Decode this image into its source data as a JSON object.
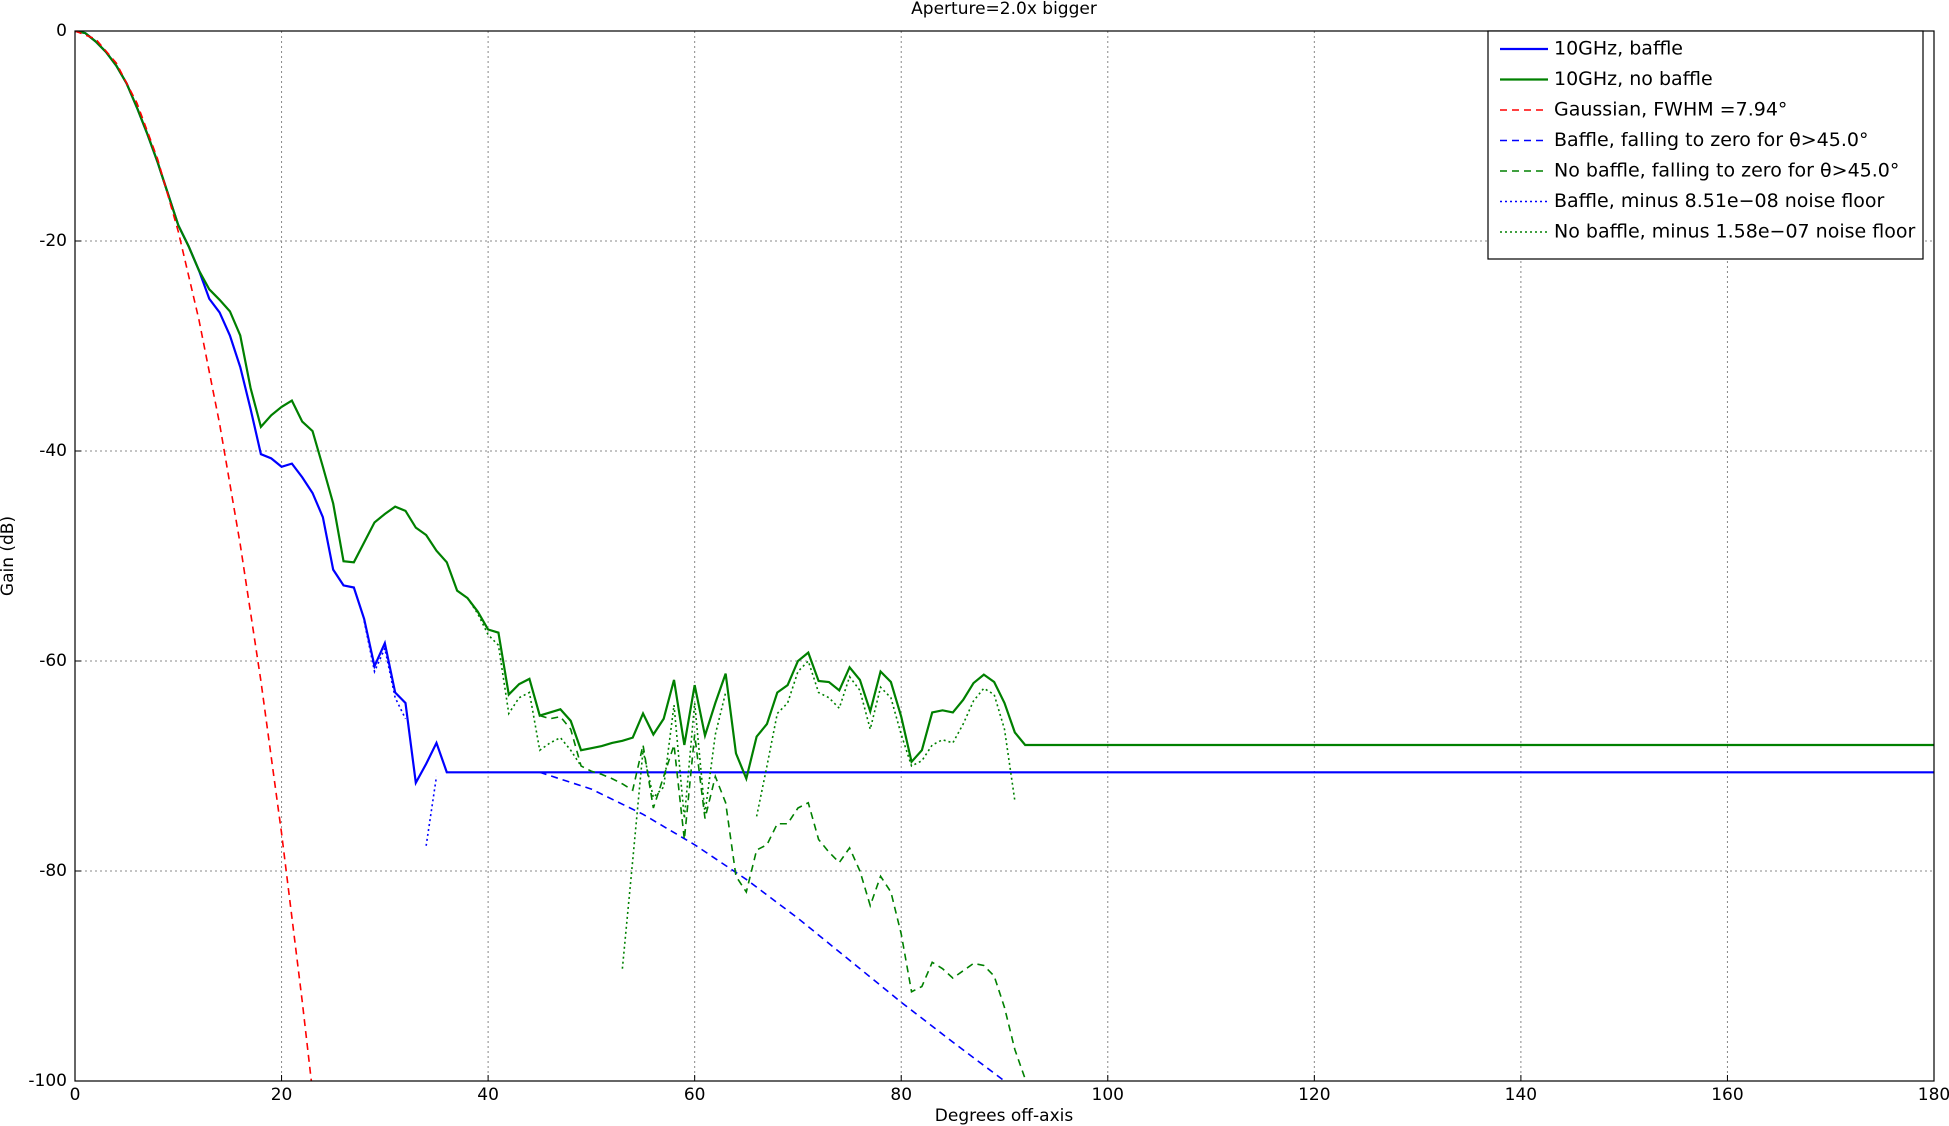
{
  "chart_data": {
    "type": "line",
    "title": "Aperture=2.0x bigger",
    "x_label": "Degrees off-axis",
    "y_label": "Gain (dB)",
    "xlim": [
      0,
      180
    ],
    "ylim": [
      -100,
      0
    ],
    "xticks": [
      0,
      20,
      40,
      60,
      80,
      100,
      120,
      140,
      160,
      180
    ],
    "yticks": [
      -100,
      -80,
      -60,
      -40,
      -20,
      0
    ],
    "grid": true,
    "legend": "upper right",
    "series": [
      {
        "name": "10GHz, baffle",
        "color": "#0000ff",
        "style": "solid",
        "x": [
          0,
          1,
          2,
          3,
          4,
          5,
          6,
          7,
          8,
          9,
          10,
          11,
          12,
          13,
          14,
          15,
          16,
          17,
          18,
          19,
          20,
          21,
          22,
          23,
          24,
          25,
          26,
          27,
          28,
          29,
          30,
          31,
          32,
          33,
          34,
          35,
          36,
          180
        ],
        "values": [
          0,
          -0.2,
          -1,
          -2,
          -3.3,
          -5,
          -7.3,
          -9.8,
          -12.5,
          -15.5,
          -18.5,
          -20.5,
          -22.8,
          -25.5,
          -26.8,
          -29,
          -32,
          -36,
          -40.3,
          -40.7,
          -41.5,
          -41.2,
          -42.5,
          -44,
          -46.3,
          -51.3,
          -52.8,
          -53,
          -56,
          -60.5,
          -58.3,
          -63,
          -64,
          -71.6,
          -69.8,
          -67.8,
          -70.6,
          -70.6
        ]
      },
      {
        "name": "10GHz, no baffle",
        "color": "#008000",
        "style": "solid",
        "x": [
          0,
          1,
          2,
          3,
          4,
          5,
          6,
          7,
          8,
          9,
          10,
          11,
          12,
          13,
          14,
          15,
          16,
          17,
          18,
          19,
          20,
          21,
          22,
          23,
          24,
          25,
          26,
          27,
          28,
          29,
          30,
          31,
          32,
          33,
          34,
          35,
          36,
          37,
          38,
          39,
          40,
          41,
          42,
          43,
          44,
          45,
          46,
          47,
          48,
          49,
          50,
          51,
          52,
          53,
          54,
          55,
          56,
          57,
          58,
          59,
          60,
          61,
          62,
          63,
          64,
          65,
          66,
          67,
          68,
          69,
          70,
          71,
          72,
          73,
          74,
          75,
          76,
          77,
          78,
          79,
          80,
          81,
          82,
          83,
          84,
          85,
          86,
          87,
          88,
          89,
          90,
          91,
          92,
          180
        ],
        "values": [
          0,
          -0.2,
          -1,
          -2,
          -3.3,
          -5,
          -7.3,
          -9.8,
          -12.5,
          -15.5,
          -18.5,
          -20.5,
          -22.8,
          -24.6,
          -25.6,
          -26.7,
          -29,
          -34,
          -37.7,
          -36.6,
          -35.8,
          -35.2,
          -37.2,
          -38.1,
          -41.5,
          -45,
          -50.5,
          -50.6,
          -48.7,
          -46.8,
          -46,
          -45.3,
          -45.7,
          -47.3,
          -48,
          -49.5,
          -50.6,
          -53.3,
          -54,
          -55.3,
          -57,
          -57.3,
          -63.2,
          -62.2,
          -61.7,
          -65.2,
          -64.9,
          -64.6,
          -65.7,
          -68.5,
          -68.3,
          -68.1,
          -67.8,
          -67.6,
          -67.3,
          -65,
          -67,
          -65.5,
          -61.8,
          -68,
          -62.3,
          -67.1,
          -64,
          -61.2,
          -68.8,
          -71.2,
          -67.2,
          -66,
          -63,
          -62.3,
          -60,
          -59.2,
          -61.9,
          -62,
          -62.8,
          -60.6,
          -61.8,
          -64.8,
          -61,
          -62,
          -65.3,
          -69.6,
          -68.5,
          -64.9,
          -64.7,
          -64.9,
          -63.7,
          -62.1,
          -61.3,
          -62,
          -64,
          -66.8,
          -68,
          -68
        ]
      },
      {
        "name": "Gaussian, FWHM =7.94°",
        "color": "#ff0000",
        "style": "dashed",
        "x": [
          0,
          2,
          4,
          6,
          8,
          10,
          12,
          14,
          16,
          18,
          20,
          22,
          23
        ],
        "values": [
          0,
          -0.76,
          -3.06,
          -6.87,
          -12.2,
          -19.1,
          -27.5,
          -37.4,
          -48.9,
          -61.9,
          -76.4,
          -92.4,
          -101
        ]
      },
      {
        "name": "Baffle, falling to zero for θ>45.0°",
        "color": "#0000ff",
        "style": "dashed",
        "x": [
          45,
          50,
          55,
          60,
          65,
          70,
          75,
          80,
          85,
          90
        ],
        "values": [
          -70.6,
          -72.2,
          -74.6,
          -77.5,
          -80.8,
          -84.5,
          -88.5,
          -92.5,
          -96.3,
          -100
        ]
      },
      {
        "name": "No baffle, falling to zero for θ>45.0°",
        "color": "#008000",
        "style": "dashed",
        "x": [
          45,
          46,
          47,
          48,
          49,
          50,
          51,
          52,
          53,
          54,
          55,
          56,
          57,
          58,
          59,
          60,
          61,
          62,
          63,
          64,
          65,
          66,
          67,
          68,
          69,
          70,
          71,
          72,
          73,
          74,
          75,
          76,
          77,
          78,
          79,
          80,
          81,
          82,
          83,
          84,
          85,
          86,
          87,
          88,
          89,
          90,
          91,
          92
        ],
        "values": [
          -65.2,
          -65.5,
          -65.3,
          -66.5,
          -70,
          -70.5,
          -70.8,
          -71.2,
          -71.7,
          -72.3,
          -68,
          -74,
          -71,
          -68,
          -77,
          -67,
          -75,
          -71,
          -73.5,
          -80.5,
          -82,
          -78,
          -77.5,
          -75.5,
          -75.5,
          -74,
          -73.5,
          -77,
          -78.2,
          -79.2,
          -77.8,
          -80,
          -83.3,
          -80.5,
          -82,
          -86,
          -91.5,
          -91,
          -88.7,
          -89.3,
          -90.2,
          -89.5,
          -88.8,
          -89,
          -90,
          -93,
          -97,
          -99.8
        ]
      },
      {
        "name": "Baffle, minus 8.51e−08 noise floor",
        "color": "#0000ff",
        "style": "dotted",
        "x": [
          28,
          29,
          30,
          31,
          32,
          33,
          34,
          35
        ],
        "values": [
          -56.2,
          -61,
          -58.8,
          -63.5,
          -65.5,
          null,
          -77.6,
          -71
        ]
      },
      {
        "name": "No baffle, minus 1.58e−07 noise floor",
        "color": "#008000",
        "style": "dotted",
        "x": [
          38,
          39,
          40,
          41,
          42,
          43,
          44,
          45,
          46,
          47,
          48,
          49,
          50,
          51,
          52,
          53,
          54,
          55,
          56,
          57,
          58,
          59,
          60,
          61,
          62,
          63,
          64,
          65,
          66,
          67,
          68,
          69,
          70,
          71,
          72,
          73,
          74,
          75,
          76,
          77,
          78,
          79,
          80,
          81,
          82,
          83,
          84,
          85,
          86,
          87,
          88,
          89,
          90,
          91
        ],
        "values": [
          -54,
          -55.5,
          -57.5,
          -58.5,
          -65,
          -63.5,
          -63,
          -68.5,
          -67.8,
          -67.3,
          -68.5,
          -70,
          null,
          null,
          null,
          -89.3,
          -79,
          -68.5,
          -73,
          -72,
          -64.2,
          -75,
          -64,
          -74.5,
          -67,
          -63,
          null,
          null,
          -74.8,
          -70,
          -65,
          -64,
          -61,
          -60,
          -63,
          -63.5,
          -64.5,
          -61.5,
          -62.8,
          -66.5,
          -62.5,
          -63.5,
          -67,
          -70,
          -69.5,
          -68,
          -67.5,
          -67.8,
          -66,
          -63.8,
          -62.6,
          -63.2,
          -66.5,
          -73.3
        ]
      }
    ]
  }
}
